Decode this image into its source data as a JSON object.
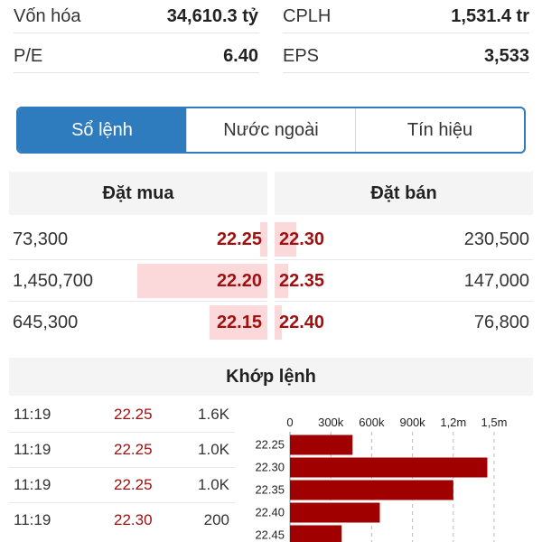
{
  "stats": [
    {
      "label_left": "Vốn hóa",
      "value_left": "34,610.3 tỷ",
      "label_right": "CPLH",
      "value_right": "1,531.4 tr"
    },
    {
      "label_left": "P/E",
      "value_left": "6.40",
      "label_right": "EPS",
      "value_right": "3,533"
    }
  ],
  "tabs": [
    {
      "label": "Sổ lệnh",
      "active": true
    },
    {
      "label": "Nước ngoài",
      "active": false
    },
    {
      "label": "Tín hiệu",
      "active": false
    }
  ],
  "orderbook": {
    "buy_header": "Đặt mua",
    "sell_header": "Đặt bán",
    "rows": [
      {
        "buy_vol": "73,300",
        "buy_price": "22.25",
        "sell_price": "22.30",
        "sell_vol": "230,500"
      },
      {
        "buy_vol": "1,450,700",
        "buy_price": "22.20",
        "sell_price": "22.35",
        "sell_vol": "147,000"
      },
      {
        "buy_vol": "645,300",
        "buy_price": "22.15",
        "sell_price": "22.40",
        "sell_vol": "76,800"
      }
    ]
  },
  "matched": {
    "title": "Khớp lệnh",
    "trades": [
      {
        "time": "11:19",
        "price": "22.25",
        "volume": "1.6K"
      },
      {
        "time": "11:19",
        "price": "22.25",
        "volume": "1.0K"
      },
      {
        "time": "11:19",
        "price": "22.25",
        "volume": "1.0K"
      },
      {
        "time": "11:19",
        "price": "22.30",
        "volume": "200"
      }
    ]
  },
  "chart_data": {
    "type": "bar",
    "orientation": "horizontal",
    "categories": [
      "22.25",
      "22.30",
      "22.35",
      "22.40",
      "22.45"
    ],
    "values": [
      460000,
      1450000,
      1200000,
      660000,
      380000
    ],
    "x_ticks": [
      "0",
      "300k",
      "600k",
      "900k",
      "1,2m",
      "1,5m"
    ],
    "xlim": [
      0,
      1500000
    ],
    "grid": true,
    "bar_color": "#a00000"
  },
  "colors": {
    "accent": "#2e7bbd",
    "price": "#a01010",
    "depth_bar": "#fbd9db"
  }
}
